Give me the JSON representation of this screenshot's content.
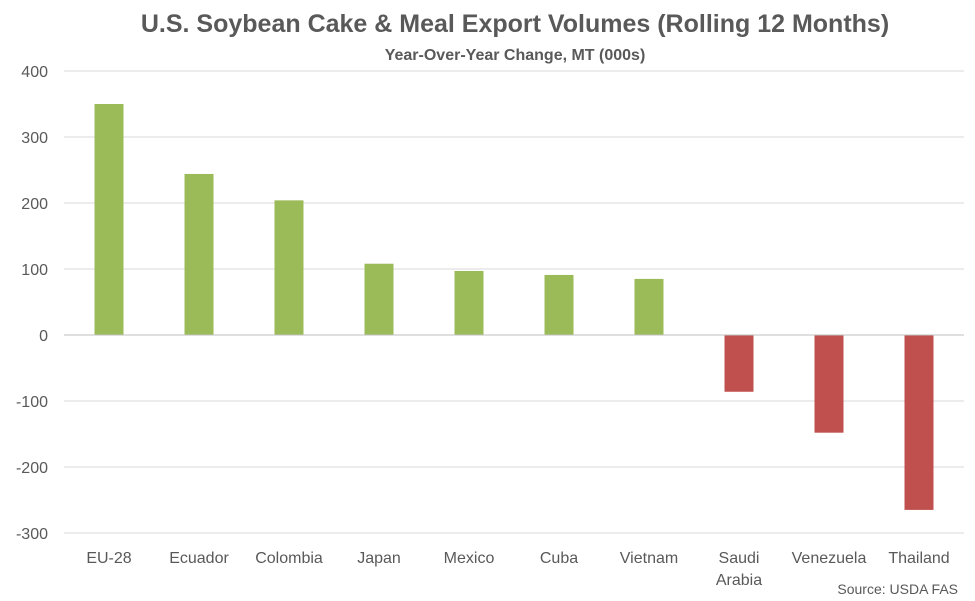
{
  "chart_data": {
    "type": "bar",
    "title": "U.S. Soybean Cake & Meal Export Volumes (Rolling 12 Months)",
    "subtitle": "Year-Over-Year Change, MT (000s)",
    "categories": [
      "EU-28",
      "Ecuador",
      "Colombia",
      "Japan",
      "Mexico",
      "Cuba",
      "Vietnam",
      "Saudi Arabia",
      "Venezuela",
      "Thailand"
    ],
    "category_lines": [
      [
        "EU-28"
      ],
      [
        "Ecuador"
      ],
      [
        "Colombia"
      ],
      [
        "Japan"
      ],
      [
        "Mexico"
      ],
      [
        "Cuba"
      ],
      [
        "Vietnam"
      ],
      [
        "Saudi",
        "Arabia"
      ],
      [
        "Venezuela"
      ],
      [
        "Thailand"
      ]
    ],
    "values": [
      350,
      244,
      204,
      108,
      97,
      91,
      85,
      -86,
      -148,
      -265
    ],
    "ylim": [
      -300,
      400
    ],
    "yticks": [
      400,
      300,
      200,
      100,
      0,
      -100,
      -200,
      -300
    ],
    "ytick_labels": [
      "400",
      "300",
      "200",
      "100",
      "0",
      "-100",
      "-200",
      "-300"
    ],
    "grid": true,
    "xlabel": "",
    "ylabel": "",
    "colors": {
      "positive": "#9bbb59",
      "negative": "#c0504d"
    },
    "source": "Source: USDA FAS"
  }
}
